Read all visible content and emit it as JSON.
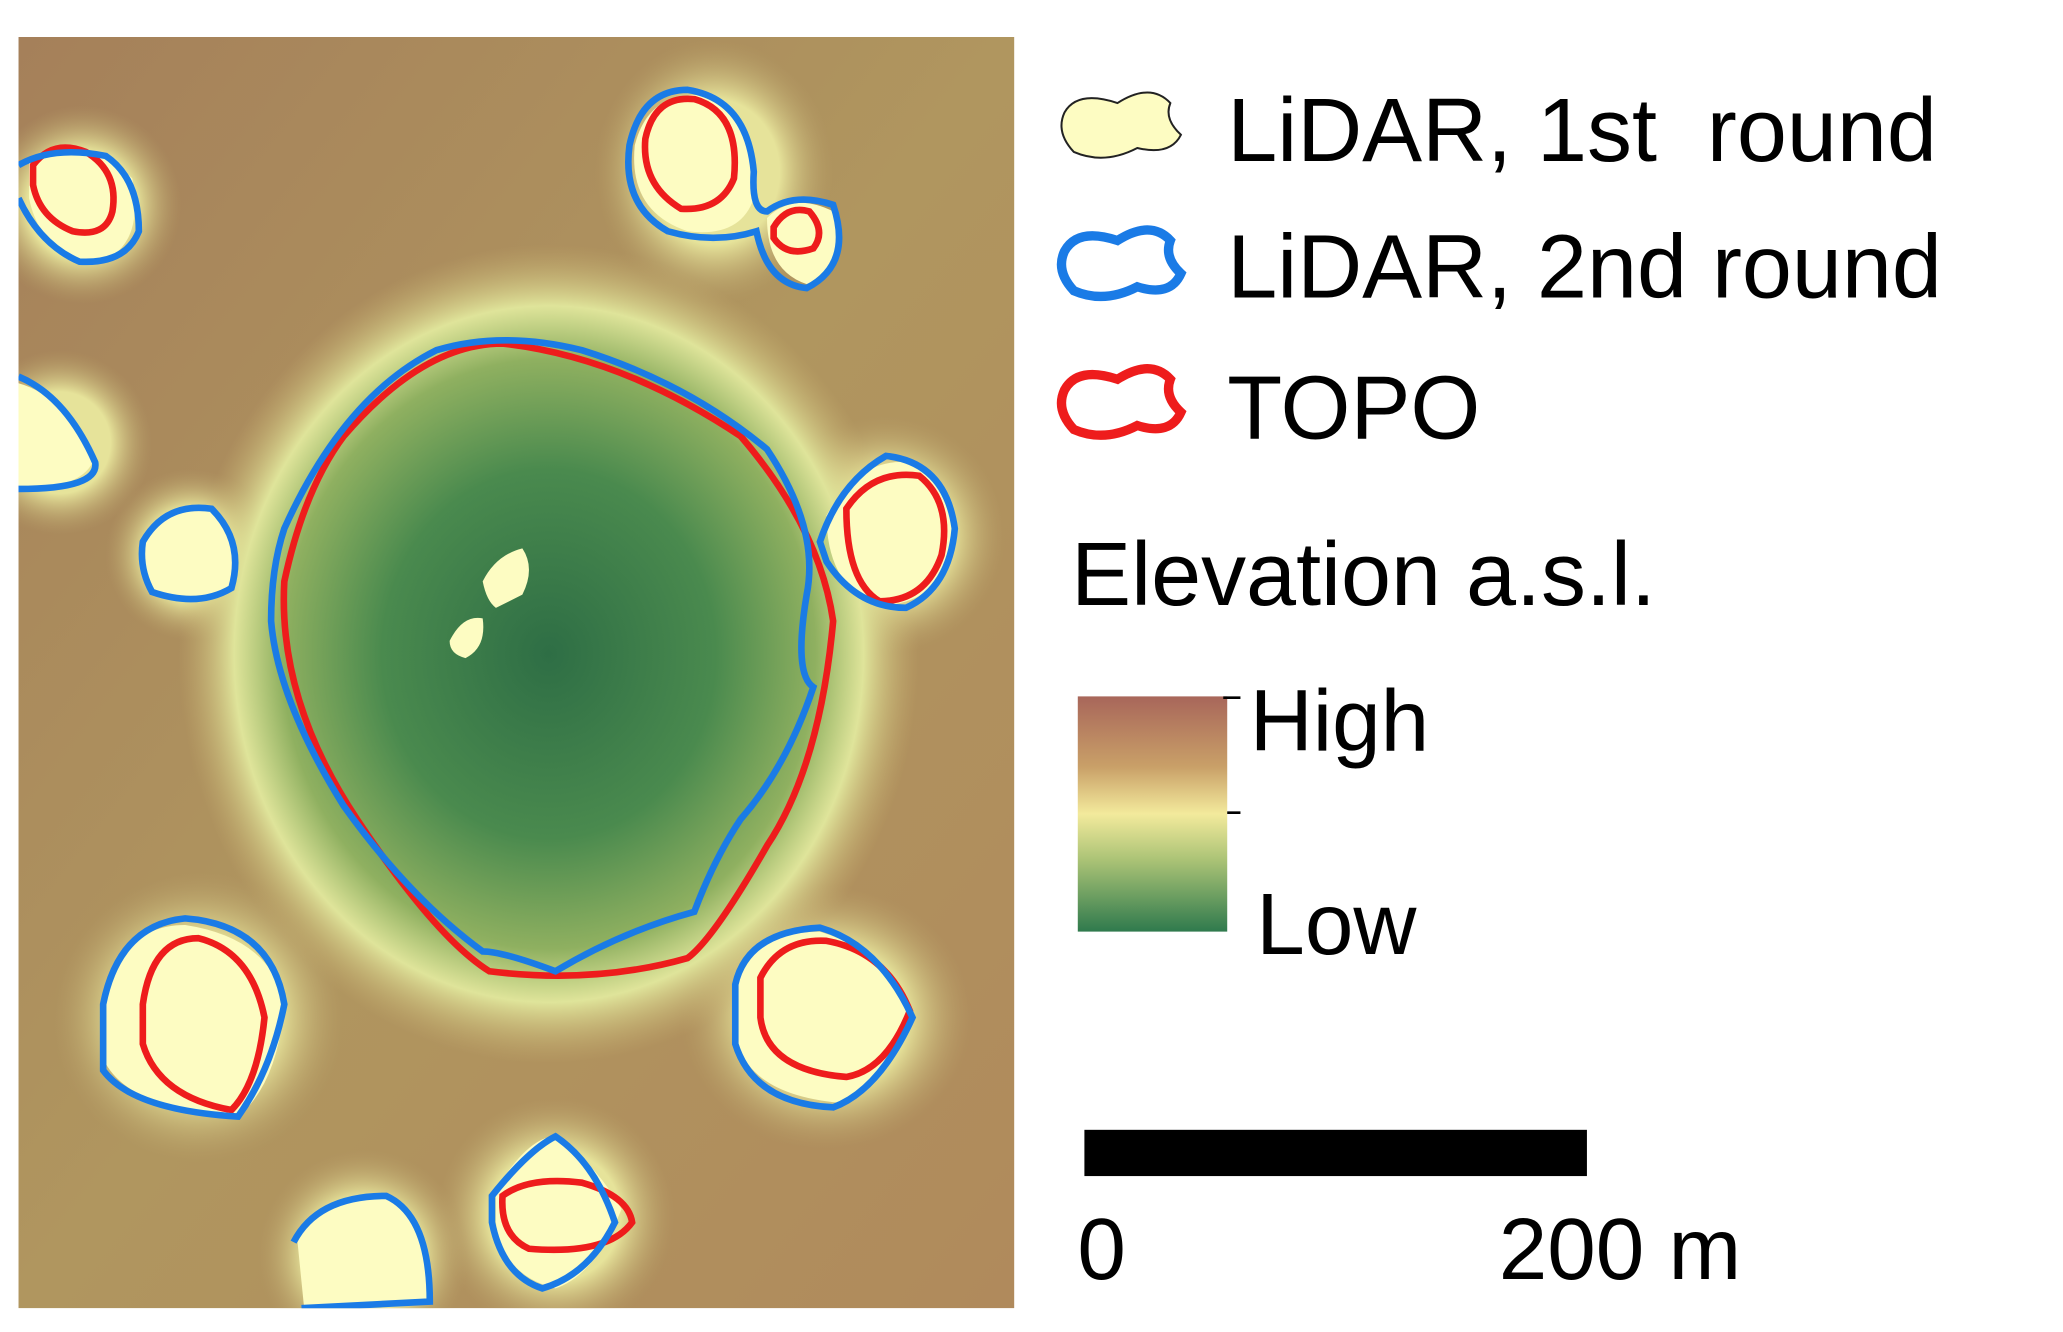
{
  "legend": {
    "items": [
      {
        "label": "LiDAR, 1st  round"
      },
      {
        "label": "LiDAR, 2nd round"
      },
      {
        "label": "TOPO"
      }
    ]
  },
  "elevation": {
    "title": "Elevation a.s.l.",
    "high": "High",
    "low": "Low"
  },
  "scale_bar": {
    "start": "0",
    "end": "200 m"
  }
}
